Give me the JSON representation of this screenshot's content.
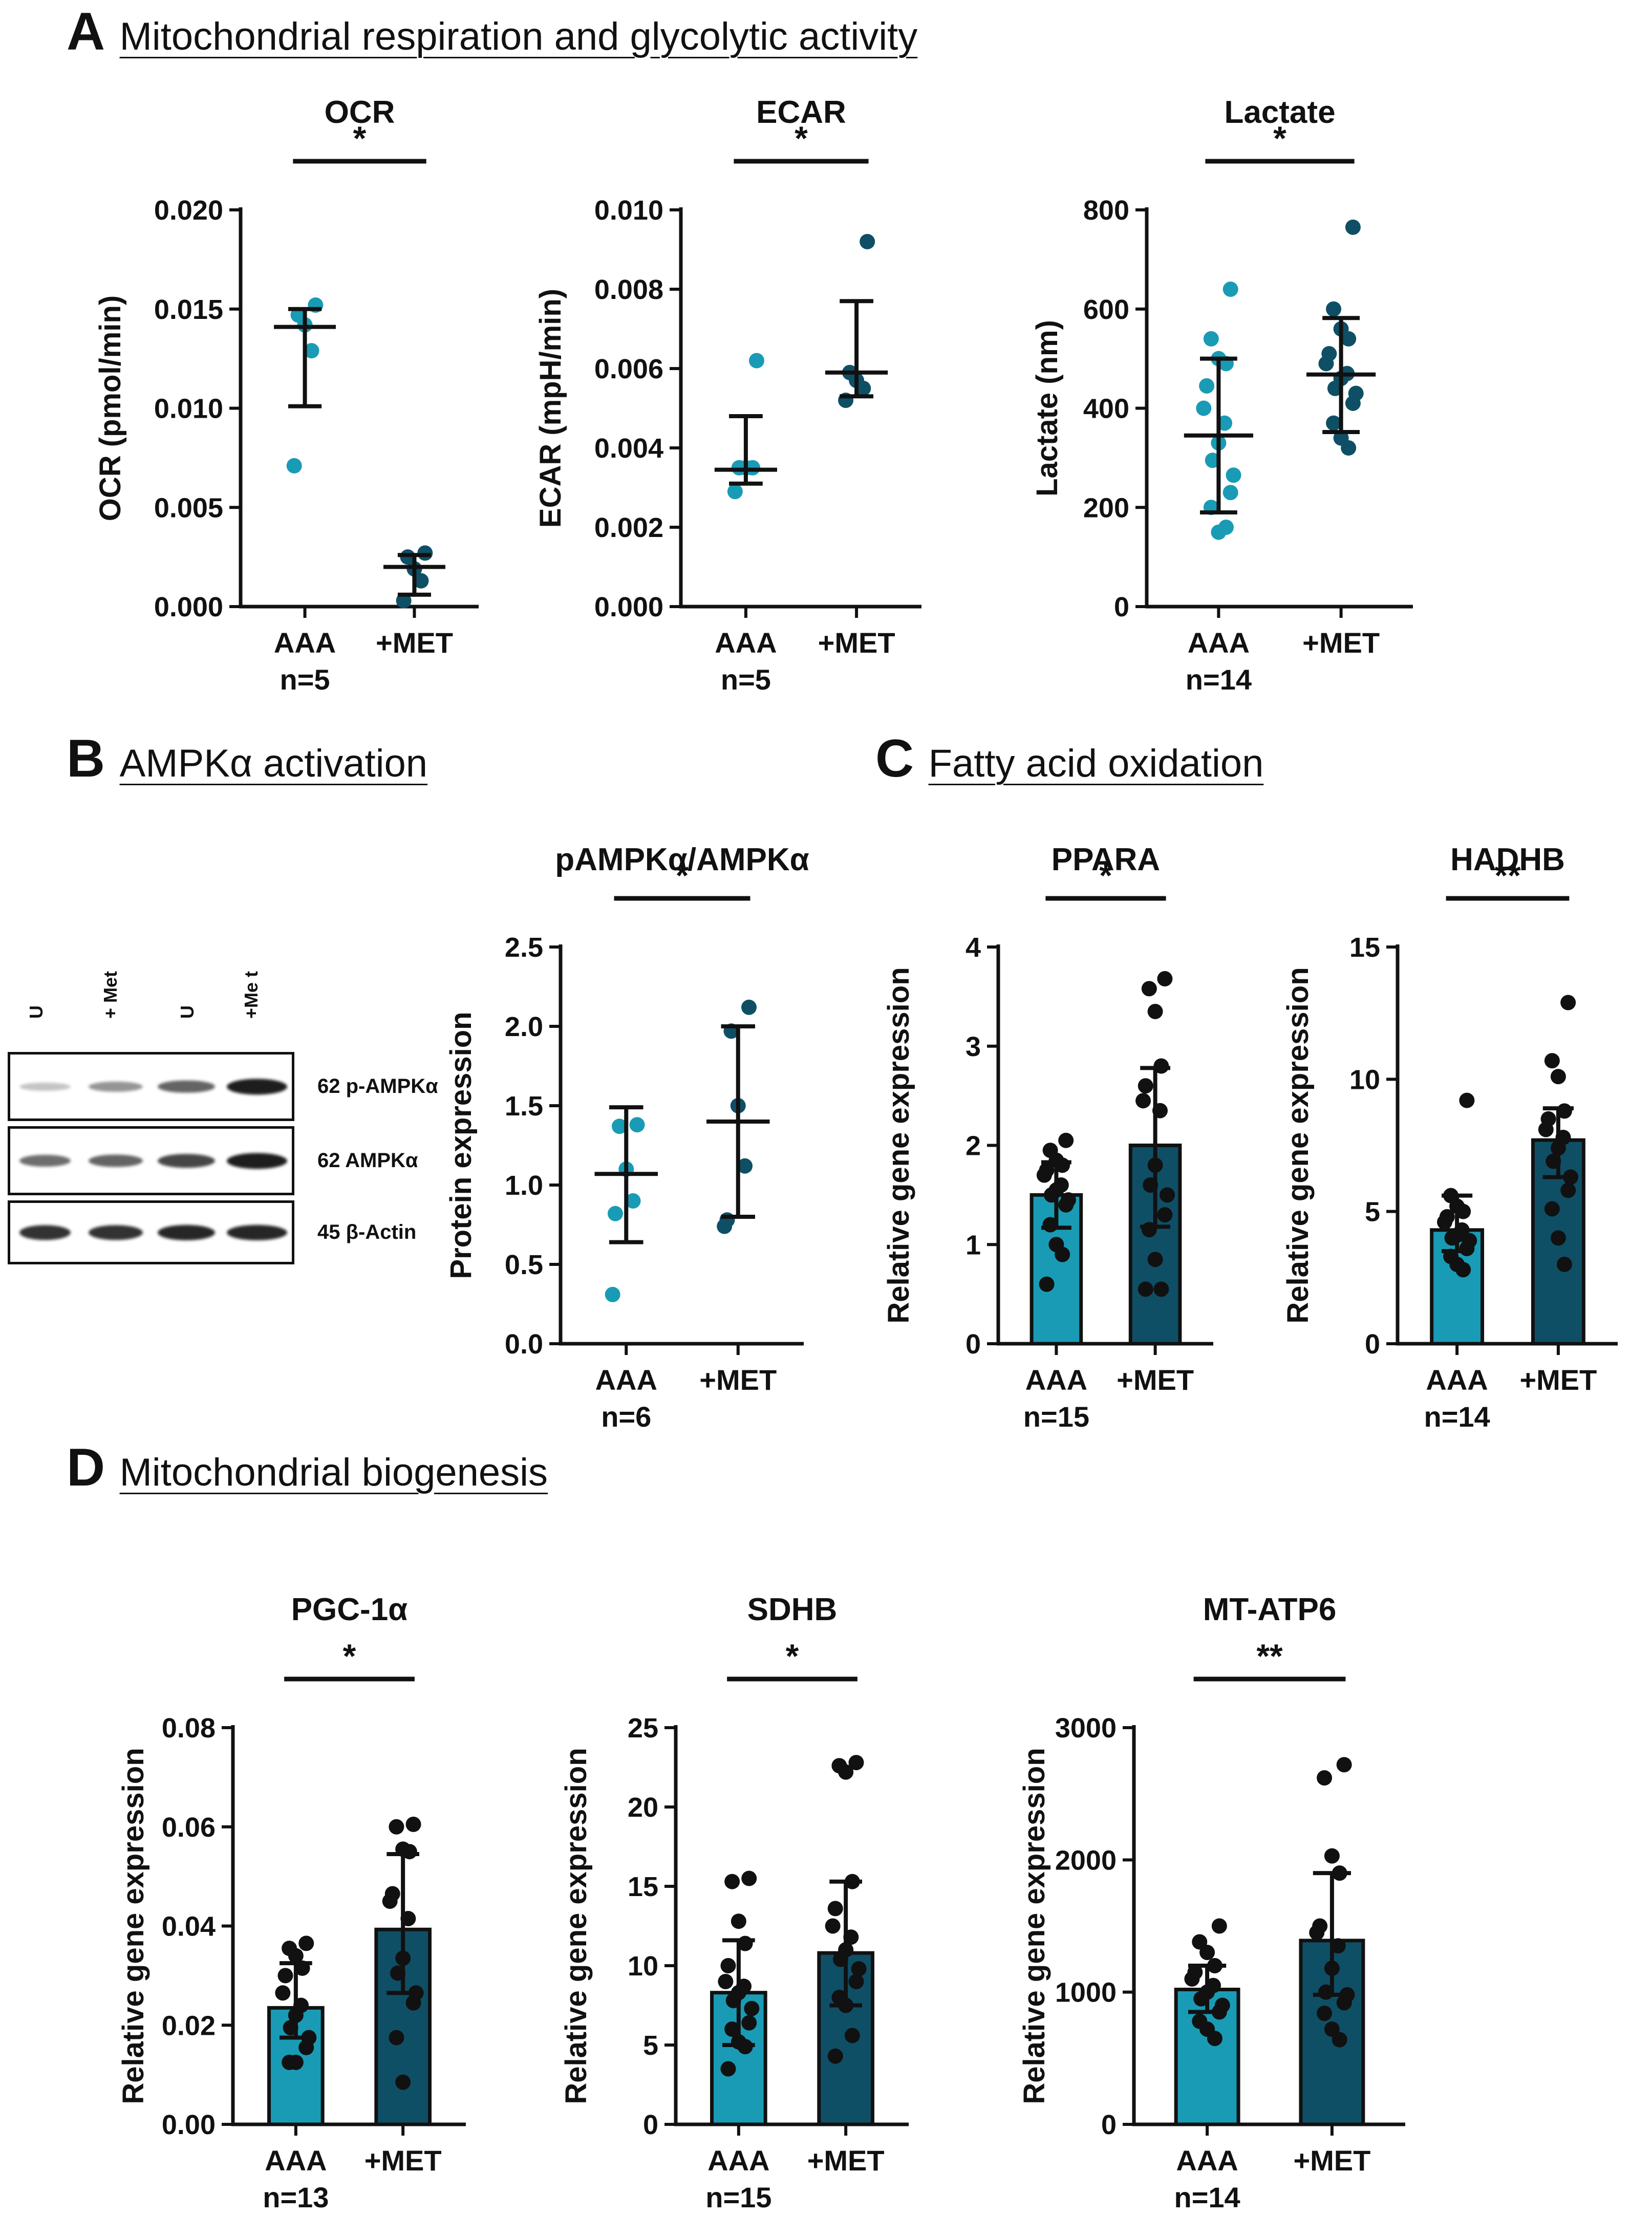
{
  "colors": {
    "aaa": "#1a9bb5",
    "met": "#0f4f66",
    "black": "#111111",
    "band": "#1a1a1a"
  },
  "sections": {
    "A": {
      "letter": "A",
      "title": "Mitochondrial respiration and glycolytic activity"
    },
    "B": {
      "letter": "B",
      "title": "AMPKα activation"
    },
    "C": {
      "letter": "C",
      "title": "Fatty acid oxidation"
    },
    "D": {
      "letter": "D",
      "title": "Mitochondrial biogenesis"
    }
  },
  "western_blot": {
    "lane_labels": [
      "U",
      "+ Met",
      "U",
      "+Me t"
    ],
    "rows": [
      {
        "label": "62 p-AMPKα",
        "intensities": [
          0.12,
          0.35,
          0.6,
          0.95
        ]
      },
      {
        "label": "62 AMPKα",
        "intensities": [
          0.55,
          0.6,
          0.75,
          0.95
        ]
      },
      {
        "label": "45 β-Actin",
        "intensities": [
          0.85,
          0.85,
          0.9,
          0.9
        ]
      }
    ]
  },
  "chart_data": [
    {
      "id": "ocr",
      "type": "scatter",
      "title": "OCR",
      "ylabel": "OCR (pmol/min)",
      "ylim": [
        0,
        0.02
      ],
      "yticks": [
        "0.000",
        "0.005",
        "0.010",
        "0.015",
        "0.020"
      ],
      "yvals": [
        0,
        0.005,
        0.01,
        0.015,
        0.02
      ],
      "categories": [
        "AAA",
        "+MET"
      ],
      "n_label": "n=5",
      "sig": "*",
      "series": [
        {
          "name": "AAA",
          "mean": 0.0141,
          "err_low": 0.0101,
          "err_high": 0.015,
          "points": [
            0.0152,
            0.0147,
            0.0142,
            0.0129,
            0.0071
          ]
        },
        {
          "name": "+MET",
          "mean": 0.002,
          "err_low": 0.0006,
          "err_high": 0.0026,
          "points": [
            0.0027,
            0.0025,
            0.0019,
            0.0013,
            0.0003
          ]
        }
      ]
    },
    {
      "id": "ecar",
      "type": "scatter",
      "title": "ECAR",
      "ylabel": "ECAR (mpH/min)",
      "ylim": [
        0,
        0.01
      ],
      "yticks": [
        "0.000",
        "0.002",
        "0.004",
        "0.006",
        "0.008",
        "0.010"
      ],
      "yvals": [
        0,
        0.002,
        0.004,
        0.006,
        0.008,
        0.01
      ],
      "categories": [
        "AAA",
        "+MET"
      ],
      "n_label": "n=5",
      "sig": "*",
      "series": [
        {
          "name": "AAA",
          "mean": 0.00345,
          "err_low": 0.0031,
          "err_high": 0.0048,
          "points": [
            0.0062,
            0.0035,
            0.0035,
            0.0035,
            0.0029
          ]
        },
        {
          "name": "+MET",
          "mean": 0.0059,
          "err_low": 0.0053,
          "err_high": 0.0077,
          "points": [
            0.0092,
            0.0059,
            0.0057,
            0.0055,
            0.0052
          ]
        }
      ]
    },
    {
      "id": "lactate",
      "type": "scatter",
      "title": "Lactate",
      "ylabel": "Lactate (nm)",
      "ylim": [
        0,
        800
      ],
      "yticks": [
        "0",
        "200",
        "400",
        "600",
        "800"
      ],
      "yvals": [
        0,
        200,
        400,
        600,
        800
      ],
      "categories": [
        "AAA",
        "+MET"
      ],
      "n_label": "n=14",
      "sig": "*",
      "series": [
        {
          "name": "AAA",
          "mean": 345,
          "err_low": 190,
          "err_high": 500,
          "points": [
            640,
            540,
            500,
            490,
            445,
            400,
            370,
            330,
            295,
            265,
            230,
            200,
            150,
            160
          ]
        },
        {
          "name": "+MET",
          "mean": 468,
          "err_low": 352,
          "err_high": 582,
          "points": [
            765,
            600,
            560,
            540,
            510,
            490,
            470,
            460,
            440,
            430,
            410,
            370,
            340,
            320
          ]
        }
      ]
    },
    {
      "id": "pampk",
      "type": "scatter",
      "title": "pAMPKα/AMPKα",
      "ylabel": "Protein expression",
      "ylim": [
        0,
        2.5
      ],
      "yticks": [
        "0.0",
        "0.5",
        "1.0",
        "1.5",
        "2.0",
        "2.5"
      ],
      "yvals": [
        0,
        0.5,
        1,
        1.5,
        2,
        2.5
      ],
      "categories": [
        "AAA",
        "+MET"
      ],
      "n_label": "n=6",
      "sig": "*",
      "series": [
        {
          "name": "AAA",
          "mean": 1.07,
          "err_low": 0.64,
          "err_high": 1.49,
          "points": [
            1.38,
            1.37,
            1.1,
            0.9,
            0.82,
            0.31
          ]
        },
        {
          "name": "+MET",
          "mean": 1.4,
          "err_low": 0.8,
          "err_high": 2.0,
          "points": [
            2.12,
            1.97,
            1.5,
            1.12,
            0.78,
            0.74
          ]
        }
      ]
    },
    {
      "id": "ppara",
      "type": "bar",
      "title": "PPARA",
      "ylabel": "Relative gene expression",
      "ylim": [
        0,
        4
      ],
      "yticks": [
        "0",
        "1",
        "2",
        "3",
        "4"
      ],
      "yvals": [
        0,
        1,
        2,
        3,
        4
      ],
      "categories": [
        "AAA",
        "+MET"
      ],
      "n_label": "n=15",
      "sig": "*",
      "series": [
        {
          "name": "AAA",
          "mean": 1.5,
          "err_low": 1.17,
          "err_high": 1.83,
          "points": [
            2.05,
            1.95,
            1.85,
            1.8,
            1.75,
            1.7,
            1.6,
            1.55,
            1.5,
            1.45,
            1.4,
            1.2,
            1.0,
            0.9,
            0.6
          ]
        },
        {
          "name": "+MET",
          "mean": 2.0,
          "err_low": 1.18,
          "err_high": 2.78,
          "points": [
            3.68,
            3.58,
            3.35,
            2.8,
            2.6,
            2.45,
            2.35,
            1.8,
            1.6,
            1.5,
            1.3,
            1.15,
            0.85,
            0.55,
            0.55
          ]
        }
      ]
    },
    {
      "id": "hadhb",
      "type": "bar",
      "title": "HADHB",
      "ylabel": "Relative gene expression",
      "ylim": [
        0,
        15
      ],
      "yticks": [
        "0",
        "5",
        "10",
        "15"
      ],
      "yvals": [
        0,
        5,
        10,
        15
      ],
      "categories": [
        "AAA",
        "+MET"
      ],
      "n_label": "n=14",
      "sig": "**",
      "series": [
        {
          "name": "AAA",
          "mean": 4.3,
          "err_low": 3.5,
          "err_high": 5.6,
          "points": [
            9.2,
            5.6,
            5.2,
            5.0,
            4.8,
            4.6,
            4.3,
            4.1,
            4.0,
            3.9,
            3.6,
            3.3,
            3.0,
            2.8
          ]
        },
        {
          "name": "+MET",
          "mean": 7.7,
          "err_low": 6.3,
          "err_high": 8.9,
          "points": [
            12.9,
            10.7,
            10.1,
            8.8,
            8.5,
            8.1,
            7.8,
            7.4,
            6.9,
            6.3,
            5.8,
            5.1,
            4.0,
            3.0
          ]
        }
      ]
    },
    {
      "id": "pgc",
      "type": "bar",
      "title": "PGC-1α",
      "ylabel": "Relative gene expression",
      "ylim": [
        0,
        0.08
      ],
      "yticks": [
        "0.00",
        "0.02",
        "0.04",
        "0.06",
        "0.08"
      ],
      "yvals": [
        0,
        0.02,
        0.04,
        0.06,
        0.08
      ],
      "categories": [
        "AAA",
        "+MET"
      ],
      "n_label": "n=13",
      "sig": "*",
      "series": [
        {
          "name": "AAA",
          "mean": 0.0235,
          "err_low": 0.0175,
          "err_high": 0.0325,
          "points": [
            0.0365,
            0.0355,
            0.034,
            0.0315,
            0.03,
            0.0265,
            0.024,
            0.022,
            0.0195,
            0.0175,
            0.0155,
            0.0125,
            0.0125
          ]
        },
        {
          "name": "+MET",
          "mean": 0.0393,
          "err_low": 0.0265,
          "err_high": 0.0545,
          "points": [
            0.0605,
            0.06,
            0.0555,
            0.055,
            0.0465,
            0.045,
            0.0415,
            0.0335,
            0.0305,
            0.0265,
            0.0245,
            0.0175,
            0.0085
          ]
        }
      ]
    },
    {
      "id": "sdhb",
      "type": "bar",
      "title": "SDHB",
      "ylabel": "Relative gene expression",
      "ylim": [
        0,
        25
      ],
      "yticks": [
        "0",
        "5",
        "10",
        "15",
        "20",
        "25"
      ],
      "yvals": [
        0,
        5,
        10,
        15,
        20,
        25
      ],
      "categories": [
        "AAA",
        "+MET"
      ],
      "n_label": "n=15",
      "sig": "*",
      "series": [
        {
          "name": "AAA",
          "mean": 8.3,
          "err_low": 5.0,
          "err_high": 11.6,
          "points": [
            15.5,
            15.3,
            12.8,
            11.4,
            10.0,
            9.0,
            8.7,
            8.3,
            7.8,
            7.3,
            6.4,
            6.0,
            5.2,
            4.9,
            3.5
          ]
        },
        {
          "name": "+MET",
          "mean": 10.8,
          "err_low": 7.5,
          "err_high": 15.3,
          "points": [
            22.8,
            22.6,
            22.2,
            15.3,
            13.6,
            12.5,
            11.8,
            11.0,
            10.4,
            9.8,
            9.0,
            8.0,
            7.5,
            5.6,
            4.3
          ]
        }
      ]
    },
    {
      "id": "mtatp6",
      "type": "bar",
      "title": "MT-ATP6",
      "ylabel": "Relative gene expression",
      "ylim": [
        0,
        3000
      ],
      "yticks": [
        "0",
        "1000",
        "2000",
        "3000"
      ],
      "yvals": [
        0,
        1000,
        2000,
        3000
      ],
      "categories": [
        "AAA",
        "+MET"
      ],
      "n_label": "n=14",
      "sig": "**",
      "series": [
        {
          "name": "AAA",
          "mean": 1020,
          "err_low": 850,
          "err_high": 1200,
          "points": [
            1500,
            1380,
            1300,
            1200,
            1150,
            1100,
            1050,
            1000,
            950,
            900,
            850,
            780,
            720,
            650
          ]
        },
        {
          "name": "+MET",
          "mean": 1390,
          "err_low": 980,
          "err_high": 1900,
          "points": [
            2720,
            2620,
            2030,
            1900,
            1500,
            1450,
            1350,
            1180,
            1000,
            980,
            920,
            840,
            720,
            640
          ]
        }
      ]
    }
  ]
}
